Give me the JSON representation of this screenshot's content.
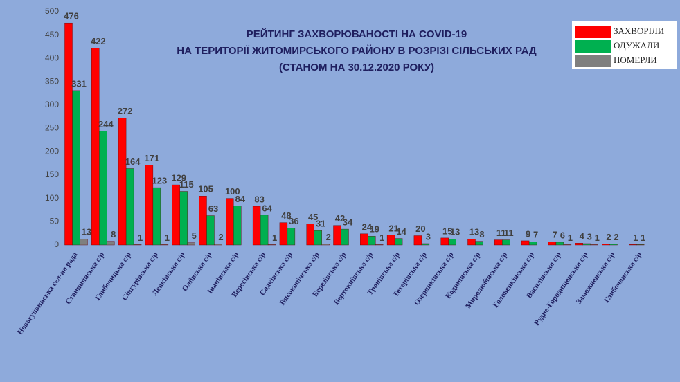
{
  "chart_data": {
    "type": "bar",
    "title_lines": [
      "РЕЙТИНГ ЗАХВОРЮВАНОСТІ НА COVID-19",
      "НА ТЕРИТОРІЇ ЖИТОМИРСЬКОГО РАЙОНУ В РОЗРІЗІ СІЛЬСЬКИХ РАД",
      "(СТАНОМ НА 30.12.2020 РОКУ)"
    ],
    "categories": [
      "Новогуйвинська сел-на рада",
      "Станишівська с/р",
      "Глибочицька с/р",
      "Сінгурівська с/р",
      "Левківська с/р",
      "Оліївська с/р",
      "Іванівська с/р",
      "Вересівська с/р",
      "Садківська с/р",
      "Високопічська с/р",
      "Березівська с/р",
      "Вертокиївська с/р",
      "Тронівська с/р",
      "Тетерівська  с/р",
      "Озерянківська с/р",
      "Кодинівська с/р",
      "Миролюбівська с/р",
      "Головенківська с/р",
      "Василівська с/р",
      "Рудне-Городищенська с/р",
      "Заможненська с/р",
      "Глибочанська с/р"
    ],
    "series": [
      {
        "name": "ЗАХВОРІЛИ",
        "color": "#ff0000",
        "values": [
          476,
          422,
          272,
          171,
          129,
          105,
          100,
          83,
          48,
          45,
          42,
          24,
          21,
          20,
          15,
          13,
          11,
          9,
          7,
          4,
          2,
          1
        ]
      },
      {
        "name": "ОДУЖАЛИ",
        "color": "#00b050",
        "values": [
          331,
          244,
          164,
          123,
          115,
          63,
          84,
          64,
          36,
          31,
          34,
          19,
          14,
          3,
          13,
          8,
          11,
          7,
          6,
          3,
          2,
          1
        ]
      },
      {
        "name": "ПОМЕРЛИ",
        "color": "#7f7f7f",
        "values": [
          13,
          8,
          1,
          1,
          5,
          2,
          null,
          1,
          null,
          2,
          null,
          1,
          null,
          null,
          null,
          null,
          null,
          null,
          1,
          1,
          null,
          null
        ]
      }
    ],
    "ylim": [
      0,
      500
    ],
    "yticks": [
      0,
      50,
      100,
      150,
      200,
      250,
      300,
      350,
      400,
      450,
      500
    ],
    "legend": "top-right"
  }
}
